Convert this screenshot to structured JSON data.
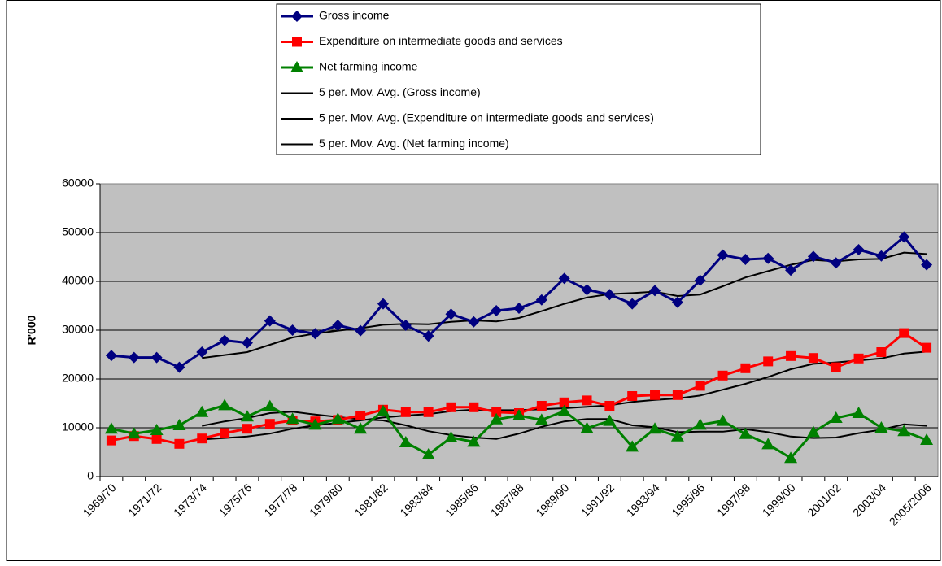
{
  "chart_data": {
    "type": "line",
    "y_label": "R'000",
    "categories": [
      "1969/70",
      null,
      "1971/72",
      null,
      "1973/74",
      null,
      "1975/76",
      null,
      "1977/78",
      null,
      "1979/80",
      null,
      "1981/82",
      null,
      "1983/84",
      null,
      "1985/86",
      null,
      "1987/88",
      null,
      "1989/90",
      null,
      "1991/92",
      null,
      "1993/94",
      null,
      "1995/96",
      null,
      "1997/98",
      null,
      "1999/00",
      null,
      "2001/02",
      null,
      "2003/04",
      null,
      "2005/2006"
    ],
    "ylim": [
      0,
      60000
    ],
    "yticks": [
      0,
      10000,
      20000,
      30000,
      40000,
      50000,
      60000
    ],
    "grid": true,
    "legend": "top",
    "series": [
      {
        "name": "Gross income",
        "color": "#000080",
        "marker": "diamond",
        "values": [
          24800,
          24400,
          24400,
          22400,
          25500,
          27900,
          27400,
          31900,
          30000,
          29300,
          31000,
          29900,
          35400,
          31000,
          28800,
          33300,
          31700,
          34000,
          34500,
          36200,
          40600,
          38300,
          37300,
          35400,
          38100,
          35700,
          40200,
          45400,
          44500,
          44700,
          42300,
          45100,
          43800,
          46500,
          45200,
          49100,
          43400
        ]
      },
      {
        "name": "Expenditure on intermediate goods and services",
        "color": "#ff0000",
        "marker": "square",
        "values": [
          7400,
          8300,
          7700,
          6700,
          7800,
          8900,
          9800,
          10800,
          11500,
          11300,
          11600,
          12500,
          13700,
          13200,
          13200,
          14200,
          14200,
          13200,
          13000,
          14500,
          15200,
          15600,
          14500,
          16500,
          16700,
          16700,
          18600,
          20700,
          22200,
          23600,
          24700,
          24300,
          22400,
          24200,
          25500,
          29400,
          26400
        ]
      },
      {
        "name": "Net farming income",
        "color": "#008000",
        "marker": "triangle",
        "values": [
          9800,
          8800,
          9500,
          10500,
          13200,
          14600,
          12300,
          14400,
          11800,
          10600,
          11800,
          9800,
          13400,
          7000,
          4500,
          8000,
          7100,
          11700,
          12500,
          11600,
          13400,
          9900,
          11400,
          6100,
          9800,
          8200,
          10600,
          11400,
          8700,
          6600,
          3800,
          9100,
          12000,
          13000,
          10000,
          9300,
          7500
        ]
      },
      {
        "name": "5 per. Mov. Avg. (Gross income)",
        "color": "#000000",
        "marker": "none",
        "values": [
          null,
          null,
          null,
          null,
          24300,
          24900,
          25500,
          27000,
          28500,
          29300,
          29900,
          30400,
          31100,
          31300,
          31200,
          31700,
          32000,
          31800,
          32500,
          33900,
          35400,
          36700,
          37400,
          37600,
          37900,
          37000,
          37300,
          39000,
          40800,
          42100,
          43400,
          44400,
          44100,
          44500,
          44600,
          45900,
          45600
        ]
      },
      {
        "name": "5 per. Mov. Avg. (Expenditure on intermediate goods and services)",
        "color": "#000000",
        "marker": "none",
        "values": [
          null,
          null,
          null,
          null,
          7600,
          7900,
          8200,
          8800,
          9800,
          10500,
          11000,
          11500,
          12100,
          12500,
          12800,
          13400,
          13700,
          13600,
          13600,
          13800,
          14000,
          14300,
          14600,
          15300,
          15700,
          16000,
          16600,
          17800,
          19000,
          20400,
          22000,
          23100,
          23400,
          23800,
          24200,
          25200,
          25600
        ]
      },
      {
        "name": "5 per. Mov. Avg. (Net farming income)",
        "color": "#000000",
        "marker": "none",
        "values": [
          null,
          null,
          null,
          null,
          10400,
          11300,
          12000,
          13000,
          13300,
          12700,
          12200,
          11700,
          11500,
          10500,
          9300,
          8500,
          8000,
          7700,
          8800,
          10200,
          11300,
          11800,
          11800,
          10500,
          10100,
          9100,
          9200,
          9200,
          9700,
          9100,
          8200,
          7900,
          8000,
          8900,
          9600,
          10700,
          10400
        ]
      }
    ]
  }
}
